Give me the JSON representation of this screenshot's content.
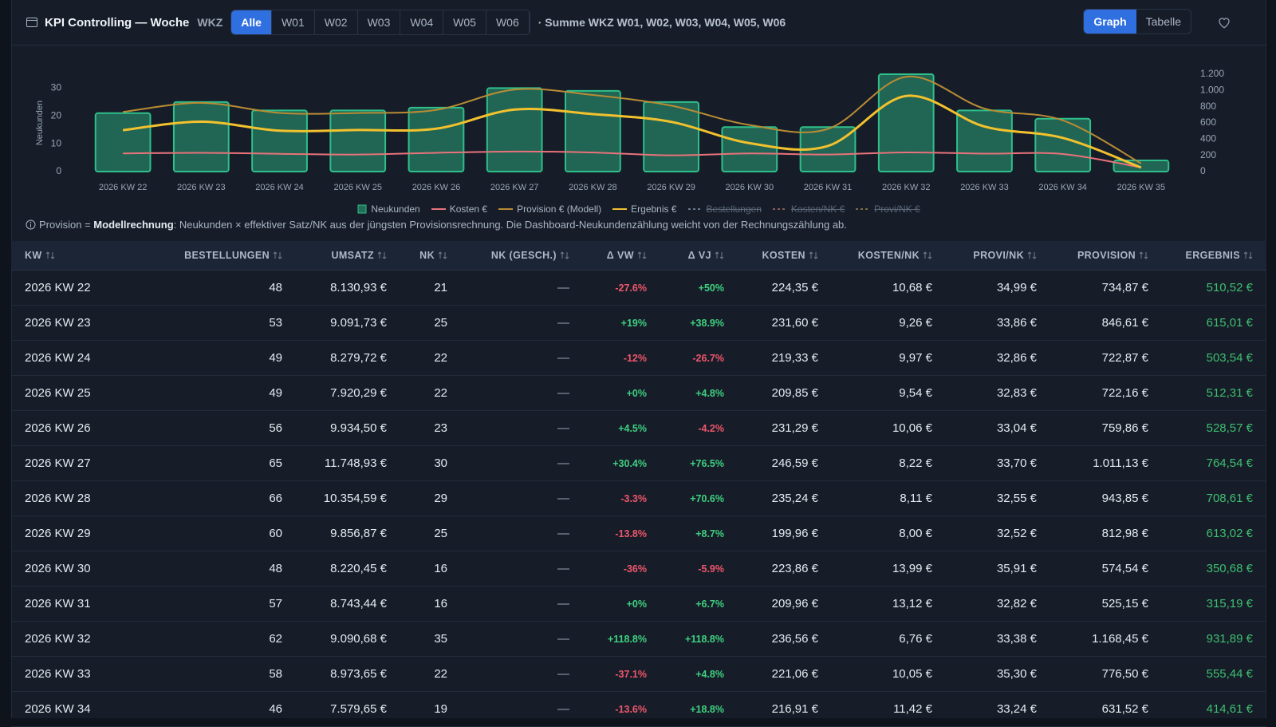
{
  "header": {
    "title": "KPI Controlling — Woche",
    "wkz_label": "WKZ",
    "tabs": [
      "Alle",
      "W01",
      "W02",
      "W03",
      "W04",
      "W05",
      "W06"
    ],
    "active_tab": 0,
    "summary": "· Summe WKZ W01, W02, W03, W04, W05, W06",
    "views": [
      "Graph",
      "Tabelle"
    ],
    "active_view": 0
  },
  "chart_data": {
    "type": "combo",
    "ylabel": "Neukunden",
    "categories": [
      "2026 KW 22",
      "2026 KW 23",
      "2026 KW 24",
      "2026 KW 25",
      "2026 KW 26",
      "2026 KW 27",
      "2026 KW 28",
      "2026 KW 29",
      "2026 KW 30",
      "2026 KW 31",
      "2026 KW 32",
      "2026 KW 33",
      "2026 KW 34",
      "2026 KW 35"
    ],
    "ylim": [
      0,
      35
    ],
    "yticks": [
      0,
      10,
      20,
      30
    ],
    "y2lim": [
      0,
      1200
    ],
    "y2ticks": [
      0,
      200,
      400,
      600,
      800,
      {
        "value": 1000,
        "label": "1.000"
      },
      {
        "value": 1200,
        "label": "1.200"
      }
    ],
    "series": [
      {
        "name": "Neukunden",
        "type": "bar",
        "color": "#2fbf8a",
        "values": [
          21,
          25,
          22,
          22,
          23,
          30,
          29,
          25,
          16,
          16,
          35,
          22,
          19,
          4
        ]
      },
      {
        "name": "Kosten €",
        "type": "line",
        "axis": "y2",
        "color": "#e8737a",
        "values": [
          224.35,
          231.6,
          219.33,
          209.85,
          231.29,
          246.59,
          235.24,
          199.96,
          223.86,
          209.96,
          236.56,
          221.06,
          216.91,
          50
        ]
      },
      {
        "name": "Provision € (Modell)",
        "type": "line",
        "axis": "y2",
        "color": "#b98c34",
        "values": [
          734.87,
          846.61,
          722.87,
          722.16,
          759.86,
          1011.13,
          943.85,
          812.98,
          574.54,
          525.15,
          1168.45,
          776.5,
          631.52,
          100
        ]
      },
      {
        "name": "Ergebnis €",
        "type": "line",
        "axis": "y2",
        "color": "#f2c12e",
        "values": [
          510.52,
          615.01,
          503.54,
          512.31,
          528.57,
          764.54,
          708.61,
          613.02,
          350.68,
          315.19,
          931.89,
          555.44,
          414.61,
          50
        ]
      },
      {
        "name": "Bestellungen",
        "type": "line",
        "hidden": true,
        "color": "#6b7688"
      },
      {
        "name": "Kosten/NK €",
        "type": "line",
        "hidden": true,
        "color": "#8a5a60"
      },
      {
        "name": "Provi/NK €",
        "type": "line",
        "hidden": true,
        "color": "#7a6a48"
      }
    ]
  },
  "note": {
    "prefix": "Provision = ",
    "bold": "Modellrechnung",
    "rest": ": Neukunden × effektiver Satz/NK aus der jüngsten Provisionsrechnung. Die Dashboard-Neukundenzählung weicht von der Rechnungszählung ab."
  },
  "table": {
    "columns": [
      "KW",
      "BESTELLUNGEN",
      "UMSATZ",
      "NK",
      "NK (GESCH.)",
      "Δ VW",
      "Δ VJ",
      "KOSTEN",
      "KOSTEN/NK",
      "PROVI/NK",
      "PROVISION",
      "ERGEBNIS"
    ],
    "rows": [
      [
        "2026 KW 22",
        "48",
        "8.130,93 €",
        "21",
        "—",
        "-27.6%",
        "+50%",
        "224,35 €",
        "10,68 €",
        "34,99 €",
        "734,87 €",
        "510,52 €"
      ],
      [
        "2026 KW 23",
        "53",
        "9.091,73 €",
        "25",
        "—",
        "+19%",
        "+38.9%",
        "231,60 €",
        "9,26 €",
        "33,86 €",
        "846,61 €",
        "615,01 €"
      ],
      [
        "2026 KW 24",
        "49",
        "8.279,72 €",
        "22",
        "—",
        "-12%",
        "-26.7%",
        "219,33 €",
        "9,97 €",
        "32,86 €",
        "722,87 €",
        "503,54 €"
      ],
      [
        "2026 KW 25",
        "49",
        "7.920,29 €",
        "22",
        "—",
        "+0%",
        "+4.8%",
        "209,85 €",
        "9,54 €",
        "32,83 €",
        "722,16 €",
        "512,31 €"
      ],
      [
        "2026 KW 26",
        "56",
        "9.934,50 €",
        "23",
        "—",
        "+4.5%",
        "-4.2%",
        "231,29 €",
        "10,06 €",
        "33,04 €",
        "759,86 €",
        "528,57 €"
      ],
      [
        "2026 KW 27",
        "65",
        "11.748,93 €",
        "30",
        "—",
        "+30.4%",
        "+76.5%",
        "246,59 €",
        "8,22 €",
        "33,70 €",
        "1.011,13 €",
        "764,54 €"
      ],
      [
        "2026 KW 28",
        "66",
        "10.354,59 €",
        "29",
        "—",
        "-3.3%",
        "+70.6%",
        "235,24 €",
        "8,11 €",
        "32,55 €",
        "943,85 €",
        "708,61 €"
      ],
      [
        "2026 KW 29",
        "60",
        "9.856,87 €",
        "25",
        "—",
        "-13.8%",
        "+8.7%",
        "199,96 €",
        "8,00 €",
        "32,52 €",
        "812,98 €",
        "613,02 €"
      ],
      [
        "2026 KW 30",
        "48",
        "8.220,45 €",
        "16",
        "—",
        "-36%",
        "-5.9%",
        "223,86 €",
        "13,99 €",
        "35,91 €",
        "574,54 €",
        "350,68 €"
      ],
      [
        "2026 KW 31",
        "57",
        "8.743,44 €",
        "16",
        "—",
        "+0%",
        "+6.7%",
        "209,96 €",
        "13,12 €",
        "32,82 €",
        "525,15 €",
        "315,19 €"
      ],
      [
        "2026 KW 32",
        "62",
        "9.090,68 €",
        "35",
        "—",
        "+118.8%",
        "+118.8%",
        "236,56 €",
        "6,76 €",
        "33,38 €",
        "1.168,45 €",
        "931,89 €"
      ],
      [
        "2026 KW 33",
        "58",
        "8.973,65 €",
        "22",
        "—",
        "-37.1%",
        "+4.8%",
        "221,06 €",
        "10,05 €",
        "35,30 €",
        "776,50 €",
        "555,44 €"
      ],
      [
        "2026 KW 34",
        "46",
        "7.579,65 €",
        "19",
        "—",
        "-13.6%",
        "+18.8%",
        "216,91 €",
        "11,42 €",
        "33,24 €",
        "631,52 €",
        "414,61 €"
      ]
    ]
  }
}
